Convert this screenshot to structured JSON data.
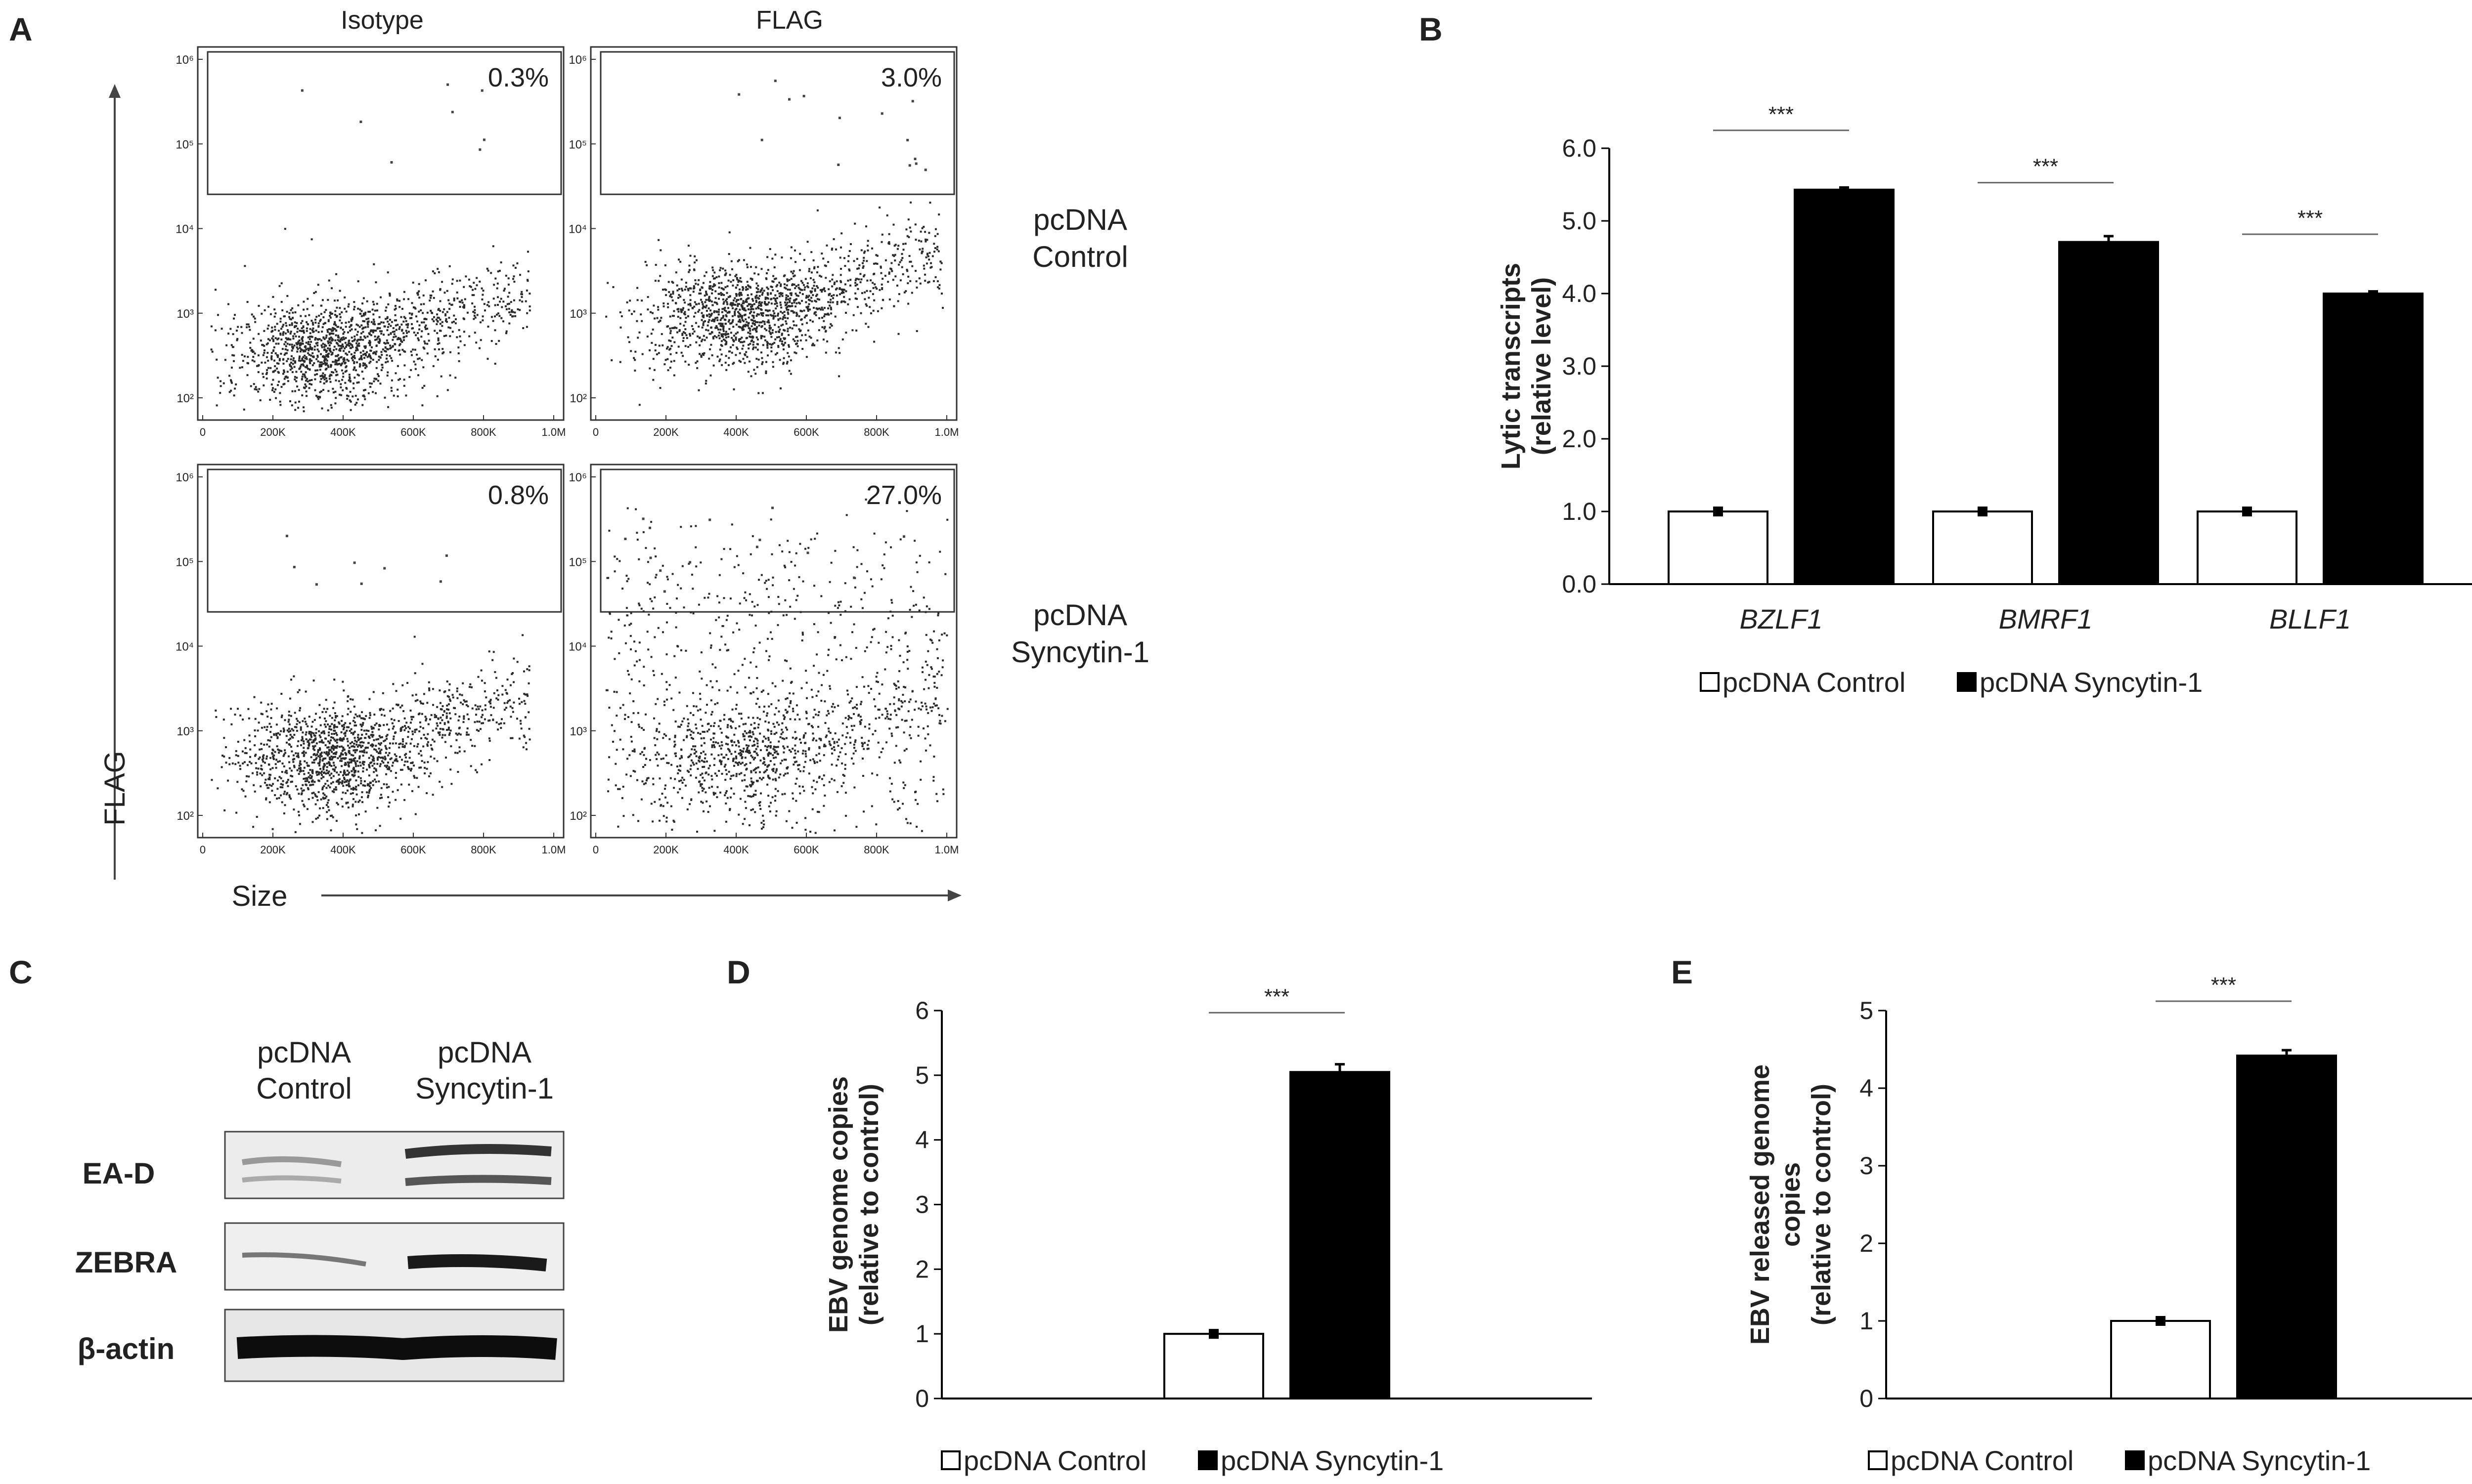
{
  "panel_labels": [
    "A",
    "B",
    "C",
    "D",
    "E"
  ],
  "colors": {
    "control_fill": "#ffffff",
    "syncytin_fill": "#000000",
    "axis": "#000000",
    "dots": "#2a2a2a",
    "blot_band": "#1a1a1a",
    "blot_background": "#ececec"
  },
  "panel_a": {
    "column_titles": [
      "Isotype",
      "FLAG"
    ],
    "row_labels": [
      [
        "pcDNA",
        "Control"
      ],
      [
        "pcDNA",
        "Syncytin-1"
      ]
    ],
    "y_axis_label": "FLAG",
    "x_axis_label": "Size",
    "x_ticks": [
      "0",
      "200K",
      "400K",
      "600K",
      "800K",
      "1.0M"
    ],
    "y_ticks": [
      "10²",
      "10³",
      "10⁴",
      "10⁵",
      "10⁶"
    ],
    "gate_percentages": [
      [
        "0.3%",
        "3.0%"
      ],
      [
        "0.8%",
        "27.0%"
      ]
    ]
  },
  "panel_c": {
    "lane_headers": [
      [
        "pcDNA",
        "Control"
      ],
      [
        "pcDNA",
        "Syncytin-1"
      ]
    ],
    "bands": [
      "EA-D",
      "ZEBRA",
      "β-actin"
    ]
  },
  "chart_data": [
    {
      "panel": "B",
      "type": "bar",
      "categories": [
        "BZLF1",
        "BMRF1",
        "BLLF1"
      ],
      "series": [
        {
          "name": "pcDNA Control",
          "values": [
            1.0,
            1.0,
            1.0
          ],
          "errors": [
            0.03,
            0.03,
            0.0
          ]
        },
        {
          "name": "pcDNA Syncytin-1",
          "values": [
            5.43,
            4.71,
            4.0
          ],
          "errors": [
            0.03,
            0.08,
            0.03
          ]
        }
      ],
      "ylabel_lines": [
        "Lytic transcripts",
        "(relative level)"
      ],
      "ylim": [
        0,
        6
      ],
      "yticks": [
        "0.0",
        "1.0",
        "2.0",
        "3.0",
        "4.0",
        "5.0",
        "6.0"
      ],
      "significance": [
        "***",
        "***",
        "***"
      ],
      "legend": [
        "pcDNA Control",
        "pcDNA Syncytin-1"
      ],
      "legend_position": "bottom"
    },
    {
      "panel": "D",
      "type": "bar",
      "categories": [
        ""
      ],
      "series": [
        {
          "name": "pcDNA Control",
          "values": [
            1.0
          ],
          "errors": [
            0.03
          ]
        },
        {
          "name": "pcDNA Syncytin-1",
          "values": [
            5.05
          ],
          "errors": [
            0.12
          ]
        }
      ],
      "ylabel_lines": [
        "EBV genome copies",
        "(relative to control)"
      ],
      "ylim": [
        0,
        6
      ],
      "yticks": [
        "0",
        "1",
        "2",
        "3",
        "4",
        "5",
        "6"
      ],
      "significance": [
        "***"
      ],
      "legend": [
        "pcDNA Control",
        "pcDNA Syncytin-1"
      ],
      "legend_position": "bottom"
    },
    {
      "panel": "E",
      "type": "bar",
      "categories": [
        ""
      ],
      "series": [
        {
          "name": "pcDNA Control",
          "values": [
            1.0
          ],
          "errors": [
            0.03
          ]
        },
        {
          "name": "pcDNA Syncytin-1",
          "values": [
            4.42
          ],
          "errors": [
            0.07
          ]
        }
      ],
      "ylabel_lines": [
        "EBV released genome",
        "copies",
        "(relative to control)"
      ],
      "ylim": [
        0,
        5
      ],
      "yticks": [
        "0",
        "1",
        "2",
        "3",
        "4",
        "5"
      ],
      "significance": [
        "***"
      ],
      "legend": [
        "pcDNA Control",
        "pcDNA Syncytin-1"
      ],
      "legend_position": "bottom"
    }
  ]
}
